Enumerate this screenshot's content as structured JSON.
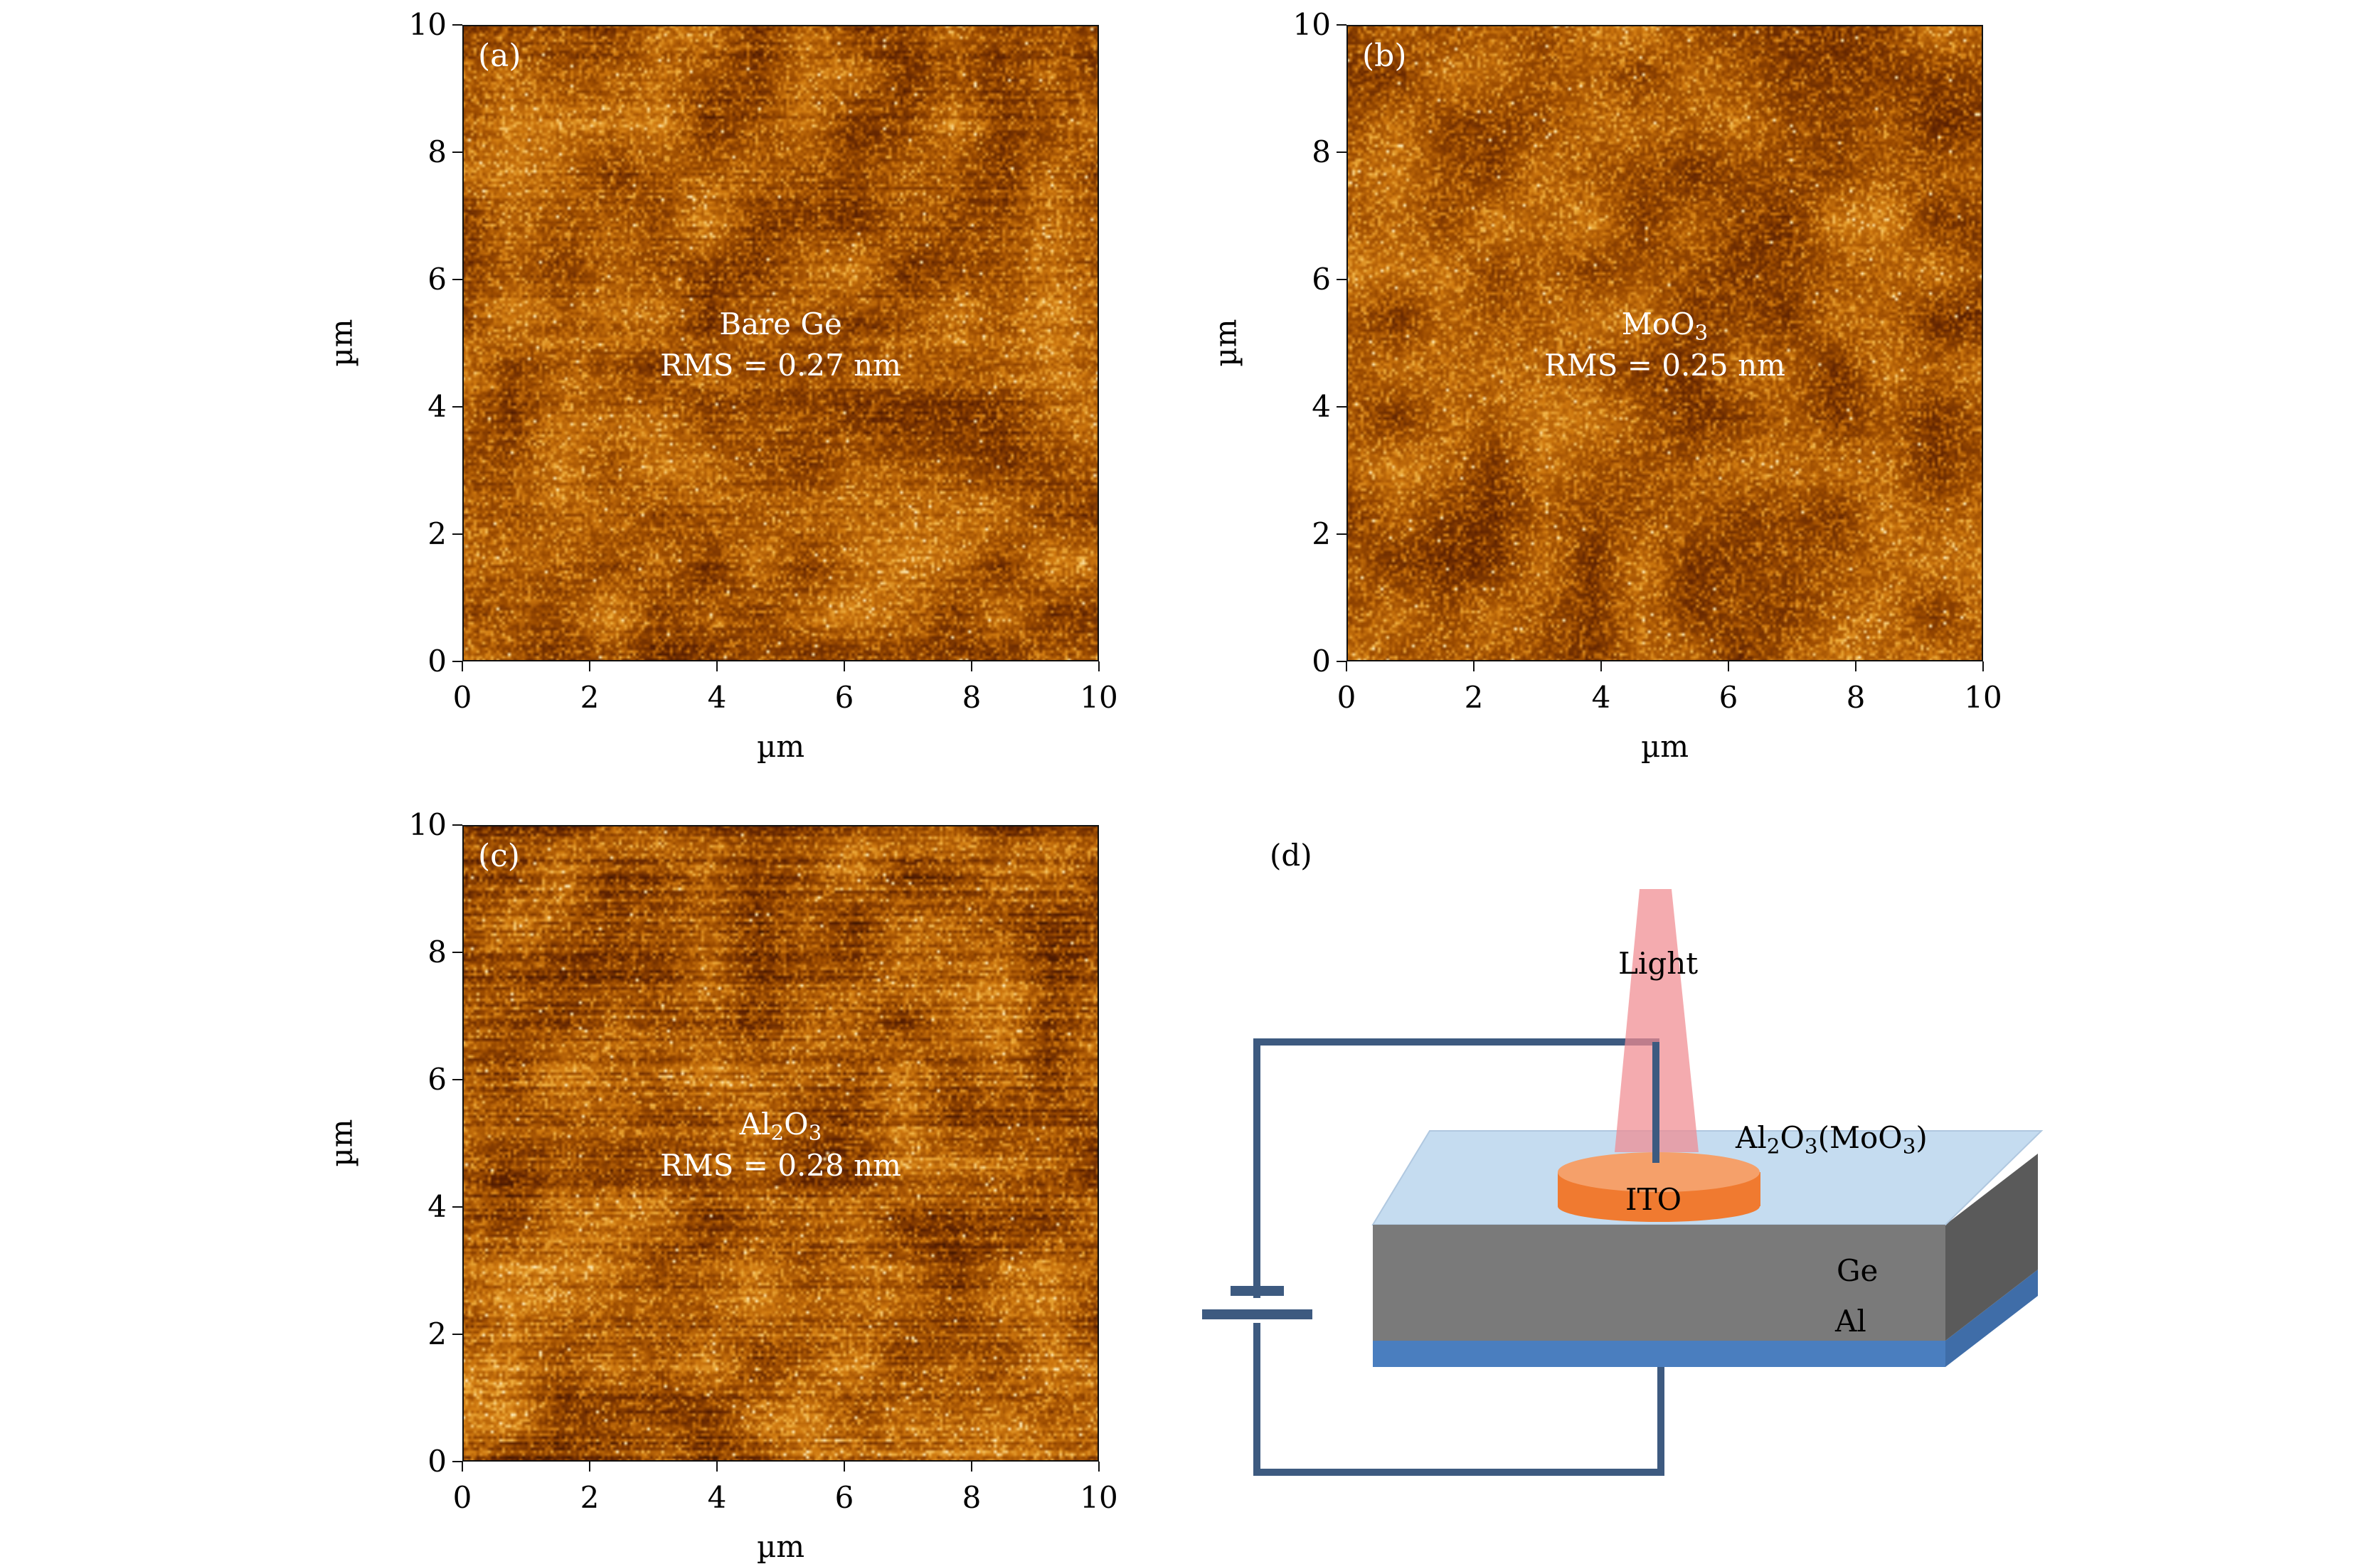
{
  "axes": {
    "x_label": "µm",
    "y_label": "µm",
    "ticks": [
      "0",
      "2",
      "4",
      "6",
      "8",
      "10"
    ]
  },
  "panels": [
    {
      "id": "a",
      "label": "(a)",
      "line1": "Bare Ge",
      "line2": "RMS = 0.27 nm",
      "texture": "striated-moderate"
    },
    {
      "id": "b",
      "label": "(b)",
      "line1": "MoO",
      "line1_sub": "3",
      "line2": "RMS = 0.25 nm",
      "texture": "granular"
    },
    {
      "id": "c",
      "label": "(c)",
      "line1_pre": "Al",
      "line1_sub1": "2",
      "line1_mid": "O",
      "line1_sub2": "3",
      "line2": "RMS = 0.28 nm",
      "texture": "striated-strong"
    }
  ],
  "diagram": {
    "label": "(d)",
    "light": "Light",
    "ito": "ITO",
    "oxide_pre": "Al",
    "oxide_sub1": "2",
    "oxide_mid": "O",
    "oxide_sub2": "3",
    "oxide_paren_open": "(MoO",
    "oxide_sub3": "3",
    "oxide_paren_close": ")",
    "ge": "Ge",
    "al": "Al",
    "colors": {
      "wire": "#3d5a80",
      "oxide_top": "#c5dcf0",
      "ge_front": "#7a7a7a",
      "ge_side": "#5a5a5a",
      "al_front": "#4a7ebf",
      "ito": "#f07a30",
      "ito_top": "#f5a06a",
      "light": "#f08a90"
    }
  },
  "colormap": [
    "#1a0500",
    "#5a1f00",
    "#9a4a00",
    "#d07a10",
    "#f0b040",
    "#fff0c0"
  ]
}
